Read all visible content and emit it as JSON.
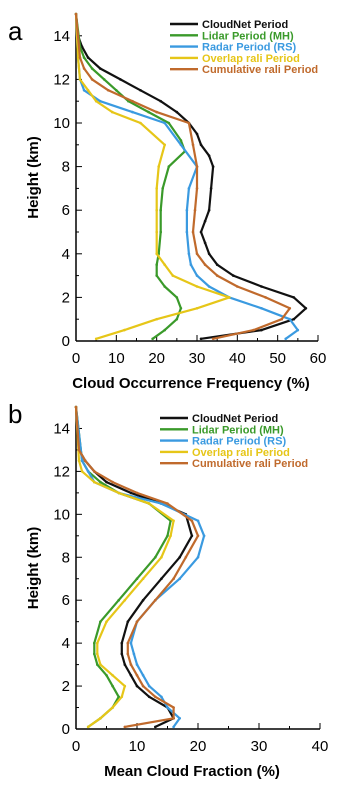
{
  "chart_data": [
    {
      "type": "line",
      "panel_label": "a",
      "xlabel": "Cloud Occurrence Frequency (%)",
      "ylabel": "Height (km)",
      "xlim": [
        0,
        60
      ],
      "ylim": [
        0,
        15
      ],
      "xticks": [
        0,
        10,
        20,
        30,
        40,
        50,
        60
      ],
      "yticks": [
        0,
        2,
        4,
        6,
        8,
        10,
        12,
        14
      ],
      "legend_position": "top-right",
      "series": [
        {
          "name": "CloudNet Period",
          "color": "#111111",
          "points": [
            [
              31,
              0.1
            ],
            [
              46,
              0.5
            ],
            [
              54,
              1
            ],
            [
              57,
              1.5
            ],
            [
              54,
              2
            ],
            [
              46,
              2.5
            ],
            [
              39,
              3
            ],
            [
              35,
              3.5
            ],
            [
              33,
              4
            ],
            [
              32,
              4.5
            ],
            [
              31,
              5
            ],
            [
              32,
              5.5
            ],
            [
              33,
              6
            ],
            [
              33.5,
              7
            ],
            [
              34,
              8
            ],
            [
              33,
              8.5
            ],
            [
              31,
              9
            ],
            [
              30,
              9.5
            ],
            [
              28,
              10
            ],
            [
              25,
              10.5
            ],
            [
              21,
              11
            ],
            [
              16,
              11.5
            ],
            [
              11,
              12
            ],
            [
              6,
              12.5
            ],
            [
              3,
              13
            ],
            [
              1.5,
              13.5
            ],
            [
              0.5,
              14
            ],
            [
              0,
              15
            ]
          ]
        },
        {
          "name": "Lidar Period (MH)",
          "color": "#3a9a2a",
          "points": [
            [
              19,
              0.1
            ],
            [
              22,
              0.5
            ],
            [
              25,
              1
            ],
            [
              26,
              1.5
            ],
            [
              25,
              2
            ],
            [
              22,
              2.5
            ],
            [
              20,
              3
            ],
            [
              20,
              3.5
            ],
            [
              20.5,
              4
            ],
            [
              21,
              5
            ],
            [
              21,
              6
            ],
            [
              21.5,
              7
            ],
            [
              23,
              8
            ],
            [
              27,
              8.7
            ],
            [
              26,
              9.2
            ],
            [
              23,
              10
            ],
            [
              18,
              10.5
            ],
            [
              13,
              11
            ],
            [
              10,
              11.5
            ],
            [
              7,
              12
            ],
            [
              4,
              12.5
            ],
            [
              2,
              13
            ],
            [
              1,
              13.5
            ],
            [
              0,
              15
            ]
          ]
        },
        {
          "name": "Radar Period (RS)",
          "color": "#3a9ae0",
          "points": [
            [
              52,
              0.1
            ],
            [
              55,
              0.5
            ],
            [
              53,
              1
            ],
            [
              46,
              1.5
            ],
            [
              38,
              2
            ],
            [
              33,
              2.5
            ],
            [
              30,
              3
            ],
            [
              28.5,
              3.5
            ],
            [
              28,
              4
            ],
            [
              27.5,
              5
            ],
            [
              27.5,
              6
            ],
            [
              28,
              7
            ],
            [
              30,
              8
            ],
            [
              26,
              9
            ],
            [
              22,
              10
            ],
            [
              14,
              10.5
            ],
            [
              6,
              11
            ],
            [
              2,
              11.5
            ],
            [
              1,
              12
            ],
            [
              0.5,
              13
            ],
            [
              0,
              15
            ]
          ]
        },
        {
          "name": "Overlap rali Period",
          "color": "#e6c618",
          "points": [
            [
              5,
              0.1
            ],
            [
              12,
              0.5
            ],
            [
              20,
              1
            ],
            [
              30,
              1.5
            ],
            [
              38,
              2
            ],
            [
              30,
              2.5
            ],
            [
              24,
              3
            ],
            [
              22,
              3.5
            ],
            [
              20,
              4
            ],
            [
              20,
              5
            ],
            [
              20,
              6
            ],
            [
              20,
              7
            ],
            [
              20.5,
              8
            ],
            [
              22,
              9
            ],
            [
              16,
              10
            ],
            [
              9,
              10.5
            ],
            [
              5,
              11
            ],
            [
              3,
              11.5
            ],
            [
              1,
              12
            ],
            [
              0.5,
              13
            ],
            [
              0,
              15
            ]
          ]
        },
        {
          "name": "Cumulative rali Period",
          "color": "#c06a2c",
          "points": [
            [
              34,
              0.1
            ],
            [
              44,
              0.5
            ],
            [
              51,
              1
            ],
            [
              53,
              1.5
            ],
            [
              47,
              2
            ],
            [
              40,
              2.5
            ],
            [
              35,
              3
            ],
            [
              32,
              3.5
            ],
            [
              30,
              4
            ],
            [
              29,
              5
            ],
            [
              29.5,
              6
            ],
            [
              30,
              7
            ],
            [
              30,
              8
            ],
            [
              29,
              9
            ],
            [
              28,
              10
            ],
            [
              20,
              10.5
            ],
            [
              14,
              11
            ],
            [
              8,
              11.5
            ],
            [
              4,
              12
            ],
            [
              2,
              12.5
            ],
            [
              1,
              13
            ],
            [
              0,
              15
            ]
          ]
        }
      ]
    },
    {
      "type": "line",
      "panel_label": "b",
      "xlabel": "Mean Cloud Fraction (%)",
      "ylabel": "Height (km)",
      "xlim": [
        0,
        40
      ],
      "ylim": [
        0,
        15
      ],
      "xticks": [
        0,
        10,
        20,
        30,
        40
      ],
      "yticks": [
        0,
        2,
        4,
        6,
        8,
        10,
        12,
        14
      ],
      "legend_position": "top-right",
      "series": [
        {
          "name": "CloudNet Period",
          "color": "#111111",
          "points": [
            [
              13,
              0.1
            ],
            [
              16,
              0.5
            ],
            [
              15,
              1
            ],
            [
              12,
              1.5
            ],
            [
              10,
              2
            ],
            [
              9,
              2.5
            ],
            [
              8,
              3
            ],
            [
              7.5,
              3.5
            ],
            [
              7.5,
              4
            ],
            [
              8.5,
              5
            ],
            [
              11,
              6
            ],
            [
              14,
              7
            ],
            [
              17,
              8
            ],
            [
              19,
              9
            ],
            [
              18,
              10
            ],
            [
              14,
              10.5
            ],
            [
              9,
              11
            ],
            [
              5,
              11.5
            ],
            [
              3,
              12
            ],
            [
              1.5,
              12.5
            ],
            [
              0.5,
              13
            ],
            [
              0,
              15
            ]
          ]
        },
        {
          "name": "Lidar Period (MH)",
          "color": "#3a9a2a",
          "points": [
            [
              2,
              0.1
            ],
            [
              4,
              0.5
            ],
            [
              6,
              1
            ],
            [
              7,
              1.5
            ],
            [
              6,
              2
            ],
            [
              5,
              2.5
            ],
            [
              3.5,
              3
            ],
            [
              3,
              3.5
            ],
            [
              3,
              4
            ],
            [
              4,
              5
            ],
            [
              7,
              6
            ],
            [
              10,
              7
            ],
            [
              13,
              8
            ],
            [
              15,
              9
            ],
            [
              15.5,
              9.7
            ],
            [
              12,
              10.5
            ],
            [
              7,
              11
            ],
            [
              4,
              11.5
            ],
            [
              2,
              12
            ],
            [
              1,
              12.5
            ],
            [
              0,
              15
            ]
          ]
        },
        {
          "name": "Radar Period (RS)",
          "color": "#3a9ae0",
          "points": [
            [
              16,
              0.1
            ],
            [
              17,
              0.5
            ],
            [
              15,
              1
            ],
            [
              14,
              1.5
            ],
            [
              12,
              2
            ],
            [
              11,
              2.5
            ],
            [
              10,
              3
            ],
            [
              9.5,
              3.5
            ],
            [
              9,
              4
            ],
            [
              10,
              5
            ],
            [
              13,
              6
            ],
            [
              17,
              7
            ],
            [
              20,
              8
            ],
            [
              21,
              9
            ],
            [
              20,
              9.7
            ],
            [
              14,
              10.5
            ],
            [
              7,
              11
            ],
            [
              3,
              11.5
            ],
            [
              2,
              12
            ],
            [
              1,
              12.5
            ],
            [
              0,
              15
            ]
          ]
        },
        {
          "name": "Overlap rali Period",
          "color": "#e6c618",
          "points": [
            [
              2,
              0.1
            ],
            [
              4,
              0.5
            ],
            [
              6,
              1
            ],
            [
              7.5,
              1.5
            ],
            [
              8,
              2
            ],
            [
              6,
              2.5
            ],
            [
              4,
              3
            ],
            [
              3.5,
              3.5
            ],
            [
              3.5,
              4
            ],
            [
              5,
              5
            ],
            [
              8,
              6
            ],
            [
              11,
              7
            ],
            [
              14,
              8
            ],
            [
              15.5,
              9
            ],
            [
              16,
              9.7
            ],
            [
              12,
              10.5
            ],
            [
              7,
              11
            ],
            [
              3,
              11.5
            ],
            [
              1,
              12
            ],
            [
              0.5,
              12.5
            ],
            [
              0,
              15
            ]
          ]
        },
        {
          "name": "Cumulative rali Period",
          "color": "#c06a2c",
          "points": [
            [
              8,
              0.1
            ],
            [
              16,
              0.5
            ],
            [
              16,
              1
            ],
            [
              13,
              1.5
            ],
            [
              11,
              2
            ],
            [
              10,
              2.5
            ],
            [
              9,
              3
            ],
            [
              8.5,
              3.5
            ],
            [
              8.5,
              4
            ],
            [
              10,
              5
            ],
            [
              13,
              6
            ],
            [
              16,
              7
            ],
            [
              18,
              8
            ],
            [
              20,
              9
            ],
            [
              19,
              9.7
            ],
            [
              15,
              10.5
            ],
            [
              10,
              11
            ],
            [
              6,
              11.5
            ],
            [
              3,
              12
            ],
            [
              1.5,
              12.5
            ],
            [
              0.5,
              13
            ],
            [
              0,
              15
            ]
          ]
        }
      ]
    }
  ]
}
